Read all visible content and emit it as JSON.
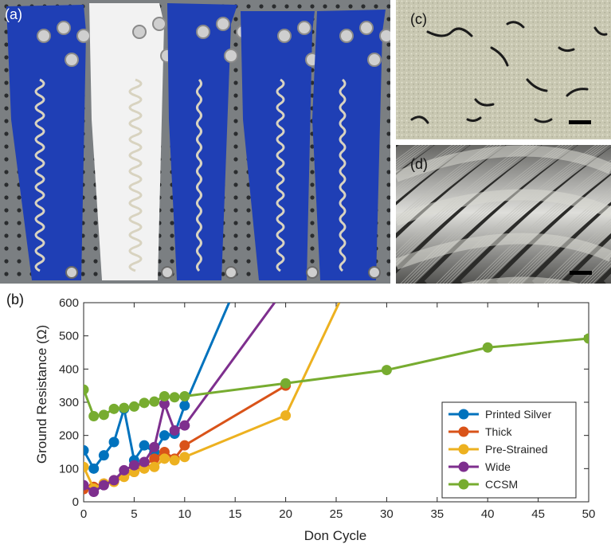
{
  "panels": {
    "a": "(a)",
    "b": "(b)",
    "c": "(c)",
    "d": "(d)"
  },
  "colors": {
    "printed_silver": "#0072BD",
    "thick": "#D95319",
    "pre_strained": "#EDB120",
    "wide": "#7E2F8E",
    "ccsm": "#77AC30",
    "sleeve_blue": "#1f3fb5",
    "sleeve_white": "#f2f2f2",
    "board": "#7b7f82"
  },
  "photo_a": {
    "sleeves": [
      {
        "fabric": "blue"
      },
      {
        "fabric": "white"
      },
      {
        "fabric": "blue"
      },
      {
        "fabric": "blue"
      },
      {
        "fabric": "blue"
      }
    ]
  },
  "chart_data": {
    "type": "line",
    "title": "",
    "xlabel": "Don Cycle",
    "ylabel": "Ground Resistance (Ω)",
    "xlim": [
      0,
      50
    ],
    "ylim": [
      0,
      600
    ],
    "xticks": [
      0,
      5,
      10,
      15,
      20,
      25,
      30,
      35,
      40,
      45,
      50
    ],
    "yticks": [
      0,
      100,
      200,
      300,
      400,
      500,
      600
    ],
    "grid": false,
    "legend_position": "bottom-right",
    "series": [
      {
        "name": "Printed Silver",
        "color": "#0072BD",
        "points": [
          [
            0,
            155
          ],
          [
            1,
            100
          ],
          [
            2,
            140
          ],
          [
            3,
            180
          ],
          [
            4,
            280
          ],
          [
            5,
            125
          ],
          [
            6,
            170
          ],
          [
            7,
            150
          ],
          [
            8,
            200
          ],
          [
            9,
            205
          ],
          [
            10,
            290
          ]
        ],
        "end_line_to": [
          14.4,
          600
        ]
      },
      {
        "name": "Thick",
        "color": "#D95319",
        "points": [
          [
            0,
            38
          ],
          [
            1,
            45
          ],
          [
            2,
            55
          ],
          [
            3,
            65
          ],
          [
            4,
            80
          ],
          [
            5,
            90
          ],
          [
            6,
            110
          ],
          [
            7,
            130
          ],
          [
            8,
            150
          ],
          [
            9,
            130
          ],
          [
            10,
            170
          ],
          [
            20,
            350
          ]
        ]
      },
      {
        "name": "Pre-Strained",
        "color": "#EDB120",
        "points": [
          [
            0,
            105
          ],
          [
            1,
            40
          ],
          [
            2,
            55
          ],
          [
            3,
            60
          ],
          [
            4,
            75
          ],
          [
            5,
            90
          ],
          [
            6,
            100
          ],
          [
            7,
            105
          ],
          [
            8,
            130
          ],
          [
            9,
            125
          ],
          [
            10,
            135
          ],
          [
            20,
            260
          ]
        ],
        "end_line_to": [
          25.3,
          600
        ]
      },
      {
        "name": "Wide",
        "color": "#7E2F8E",
        "points": [
          [
            0,
            50
          ],
          [
            1,
            30
          ],
          [
            2,
            50
          ],
          [
            3,
            65
          ],
          [
            4,
            95
          ],
          [
            5,
            110
          ],
          [
            6,
            120
          ],
          [
            7,
            165
          ],
          [
            8,
            295
          ],
          [
            9,
            215
          ],
          [
            10,
            230
          ]
        ],
        "end_line_to": [
          18.9,
          600
        ]
      },
      {
        "name": "CCSM",
        "color": "#77AC30",
        "points": [
          [
            0,
            338
          ],
          [
            1,
            258
          ],
          [
            2,
            262
          ],
          [
            3,
            280
          ],
          [
            4,
            283
          ],
          [
            5,
            287
          ],
          [
            6,
            298
          ],
          [
            7,
            302
          ],
          [
            8,
            318
          ],
          [
            9,
            315
          ],
          [
            10,
            318
          ],
          [
            20,
            357
          ],
          [
            30,
            397
          ],
          [
            40,
            465
          ],
          [
            50,
            492
          ]
        ]
      }
    ]
  }
}
